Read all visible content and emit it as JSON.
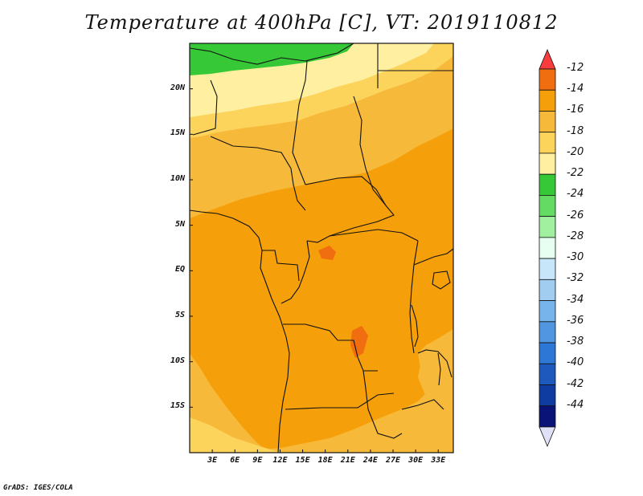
{
  "title": "Temperature at 400hPa [C], VT: 2019110812",
  "credit": "GrADS: IGES/COLA",
  "map": {
    "projection": "latlon",
    "lon_range": [
      0,
      35
    ],
    "lat_range": [
      -20,
      25
    ],
    "lat_ticks": [
      {
        "value": 20,
        "label": "20N"
      },
      {
        "value": 15,
        "label": "15N"
      },
      {
        "value": 10,
        "label": "10N"
      },
      {
        "value": 5,
        "label": "5N"
      },
      {
        "value": 0,
        "label": "EQ"
      },
      {
        "value": -5,
        "label": "5S"
      },
      {
        "value": -10,
        "label": "10S"
      },
      {
        "value": -15,
        "label": "15S"
      }
    ],
    "lon_ticks": [
      {
        "value": 3,
        "label": "3E"
      },
      {
        "value": 6,
        "label": "6E"
      },
      {
        "value": 9,
        "label": "9E"
      },
      {
        "value": 12,
        "label": "12E"
      },
      {
        "value": 15,
        "label": "15E"
      },
      {
        "value": 18,
        "label": "18E"
      },
      {
        "value": 21,
        "label": "21E"
      },
      {
        "value": 24,
        "label": "24E"
      },
      {
        "value": 27,
        "label": "27E"
      },
      {
        "value": 30,
        "label": "30E"
      },
      {
        "value": 33,
        "label": "33E"
      }
    ]
  },
  "colorbar": {
    "units": "C",
    "bins": [
      {
        "color": "#fa3c3c"
      },
      {
        "color": "#f06e0f"
      },
      {
        "color": "#f5a00a"
      },
      {
        "color": "#f7b93a"
      },
      {
        "color": "#fcd45c"
      },
      {
        "color": "#fef0a0"
      },
      {
        "color": "#37c837"
      },
      {
        "color": "#64dc64"
      },
      {
        "color": "#a0f0a0"
      },
      {
        "color": "#e6fff0"
      },
      {
        "color": "#c8e6fa"
      },
      {
        "color": "#a0cdf0"
      },
      {
        "color": "#78b4ec"
      },
      {
        "color": "#5096e1"
      },
      {
        "color": "#2d78d7"
      },
      {
        "color": "#1e5abe"
      },
      {
        "color": "#0f3ca0"
      },
      {
        "color": "#0a1478"
      },
      {
        "color": "#e0e0f8"
      }
    ],
    "labels": [
      "-12",
      "-14",
      "-16",
      "-18",
      "-20",
      "-22",
      "-24",
      "-26",
      "-28",
      "-30",
      "-32",
      "-34",
      "-36",
      "-38",
      "-40",
      "-42",
      "-44"
    ]
  },
  "field_levels": {
    "warm_patch": "-12",
    "dominant": "-14",
    "mid": "-16",
    "north": "-18",
    "far_north": "-20",
    "coldest": "-24"
  }
}
